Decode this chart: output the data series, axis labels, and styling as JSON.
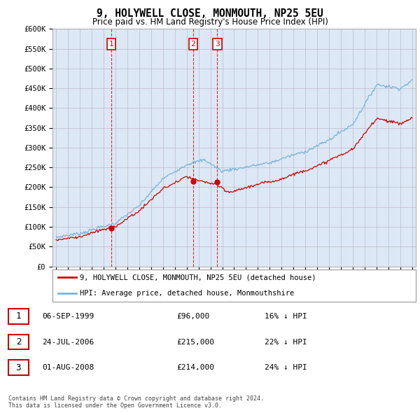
{
  "title": "9, HOLYWELL CLOSE, MONMOUTH, NP25 5EU",
  "subtitle": "Price paid vs. HM Land Registry's House Price Index (HPI)",
  "ylabel_ticks": [
    "£0",
    "£50K",
    "£100K",
    "£150K",
    "£200K",
    "£250K",
    "£300K",
    "£350K",
    "£400K",
    "£450K",
    "£500K",
    "£550K",
    "£600K"
  ],
  "ylim": [
    0,
    600000
  ],
  "ytick_vals": [
    0,
    50000,
    100000,
    150000,
    200000,
    250000,
    300000,
    350000,
    400000,
    450000,
    500000,
    550000,
    600000
  ],
  "xlim_start": 1994.7,
  "xlim_end": 2025.3,
  "hpi_color": "#7ab4d8",
  "price_color": "#cc0000",
  "vline_color": "#dd0000",
  "marker_color": "#cc0000",
  "chart_bg": "#dce8f5",
  "sale1": {
    "year": 1999.67,
    "price": 96000,
    "label": "1"
  },
  "sale2": {
    "year": 2006.55,
    "price": 215000,
    "label": "2"
  },
  "sale3": {
    "year": 2008.58,
    "price": 214000,
    "label": "3"
  },
  "legend_line1": "9, HOLYWELL CLOSE, MONMOUTH, NP25 5EU (detached house)",
  "legend_line2": "HPI: Average price, detached house, Monmouthshire",
  "table": [
    {
      "num": "1",
      "date": "06-SEP-1999",
      "price": "£96,000",
      "hpi": "16% ↓ HPI"
    },
    {
      "num": "2",
      "date": "24-JUL-2006",
      "price": "£215,000",
      "hpi": "22% ↓ HPI"
    },
    {
      "num": "3",
      "date": "01-AUG-2008",
      "price": "£214,000",
      "hpi": "24% ↓ HPI"
    }
  ],
  "footer": "Contains HM Land Registry data © Crown copyright and database right 2024.\nThis data is licensed under the Open Government Licence v3.0.",
  "background_color": "#ffffff",
  "grid_color": "#bbbbcc"
}
